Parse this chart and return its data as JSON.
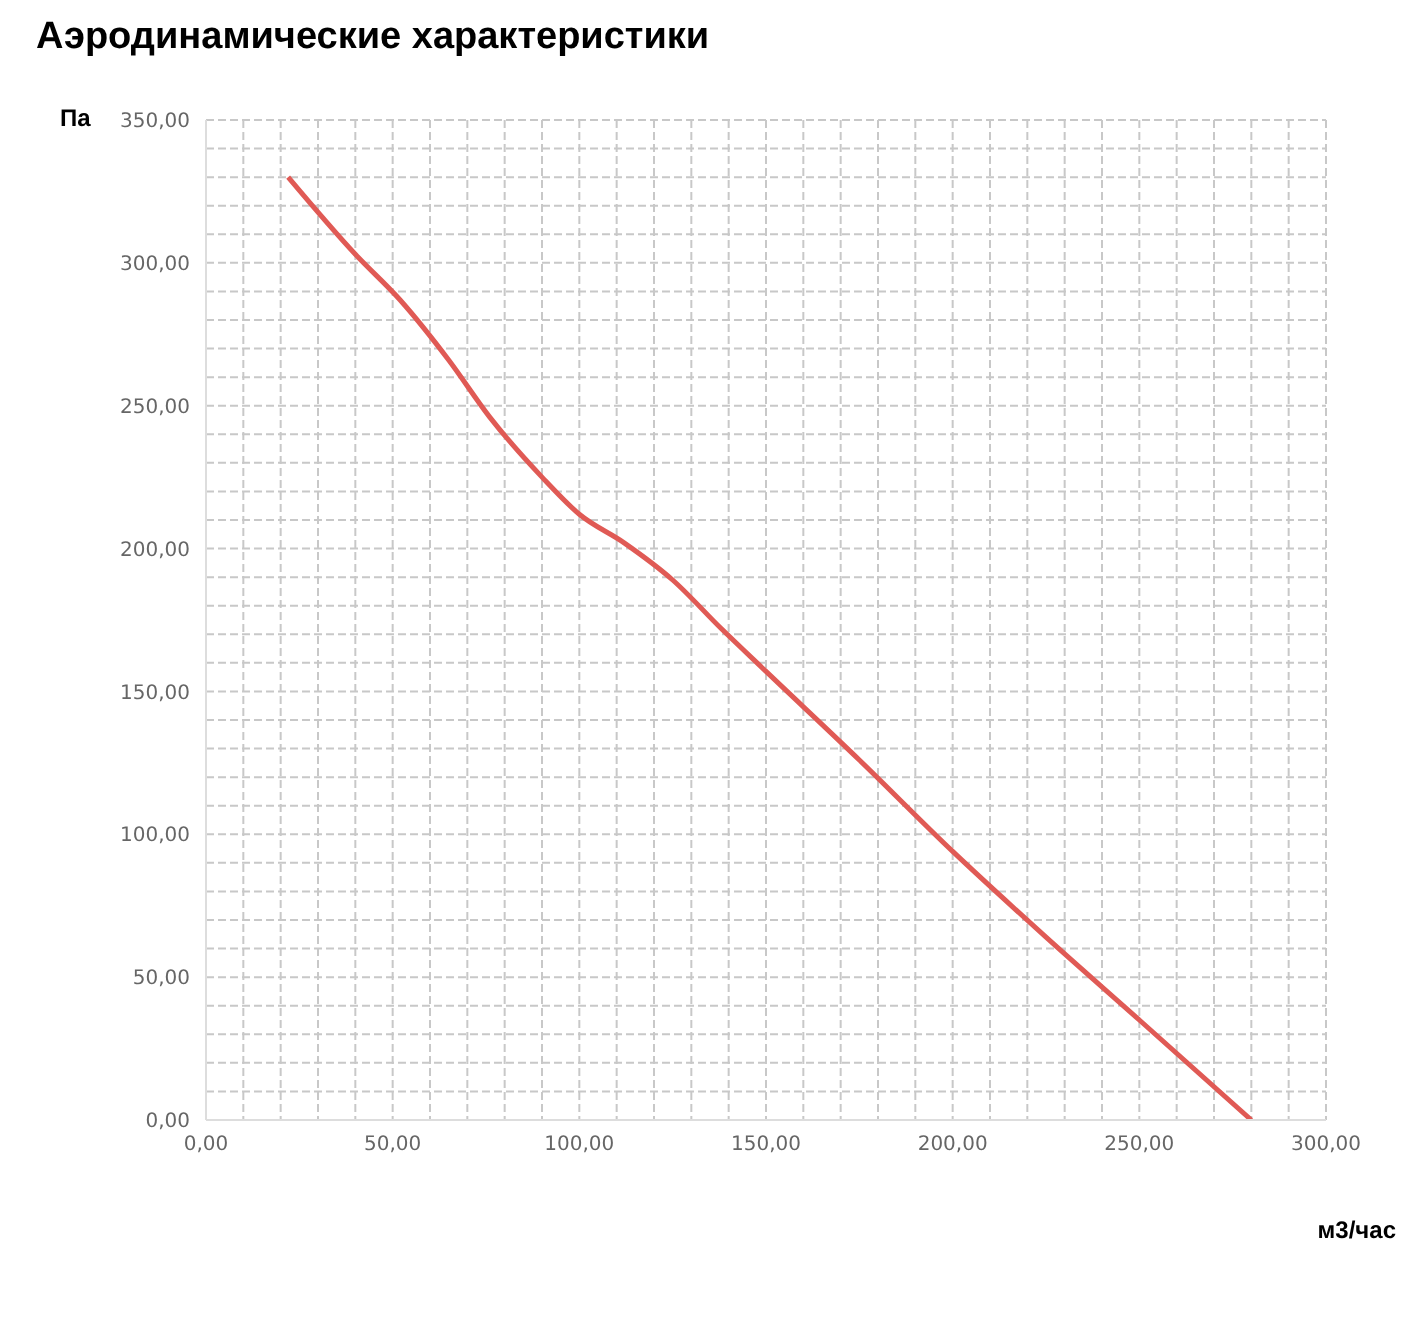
{
  "chart_data": {
    "type": "line",
    "title": "Аэродинамические характеристики",
    "xlabel": "м3/час",
    "ylabel": "Па",
    "x": [
      22,
      40,
      52,
      65,
      76,
      90,
      100,
      112,
      125,
      138,
      150,
      175,
      200,
      225,
      250,
      280
    ],
    "series": [
      {
        "color": "#e05a55",
        "values": [
          330,
          303,
          287,
          266,
          246,
          225,
          212,
          202,
          189,
          172,
          157,
          126,
          94,
          64,
          35,
          0
        ]
      }
    ],
    "xlim": [
      0,
      300
    ],
    "ylim": [
      0,
      350
    ],
    "xticks": [
      {
        "value": 0,
        "label": "0,00"
      },
      {
        "value": 10,
        "label": null
      },
      {
        "value": 20,
        "label": null
      },
      {
        "value": 30,
        "label": null
      },
      {
        "value": 40,
        "label": null
      },
      {
        "value": 50,
        "label": "50,00"
      },
      {
        "value": 60,
        "label": null
      },
      {
        "value": 70,
        "label": null
      },
      {
        "value": 80,
        "label": null
      },
      {
        "value": 90,
        "label": null
      },
      {
        "value": 100,
        "label": "100,00"
      },
      {
        "value": 110,
        "label": null
      },
      {
        "value": 120,
        "label": null
      },
      {
        "value": 130,
        "label": null
      },
      {
        "value": 140,
        "label": null
      },
      {
        "value": 150,
        "label": "150,00"
      },
      {
        "value": 160,
        "label": null
      },
      {
        "value": 170,
        "label": null
      },
      {
        "value": 180,
        "label": null
      },
      {
        "value": 190,
        "label": null
      },
      {
        "value": 200,
        "label": "200,00"
      },
      {
        "value": 210,
        "label": null
      },
      {
        "value": 220,
        "label": null
      },
      {
        "value": 230,
        "label": null
      },
      {
        "value": 240,
        "label": null
      },
      {
        "value": 250,
        "label": "250,00"
      },
      {
        "value": 260,
        "label": null
      },
      {
        "value": 270,
        "label": null
      },
      {
        "value": 280,
        "label": null
      },
      {
        "value": 290,
        "label": null
      },
      {
        "value": 300,
        "label": "300,00"
      }
    ],
    "yticks": [
      {
        "value": 0,
        "label": "0,00"
      },
      {
        "value": 10,
        "label": null
      },
      {
        "value": 20,
        "label": null
      },
      {
        "value": 30,
        "label": null
      },
      {
        "value": 40,
        "label": null
      },
      {
        "value": 50,
        "label": "50,00"
      },
      {
        "value": 60,
        "label": null
      },
      {
        "value": 70,
        "label": null
      },
      {
        "value": 80,
        "label": null
      },
      {
        "value": 90,
        "label": null
      },
      {
        "value": 100,
        "label": "100,00"
      },
      {
        "value": 110,
        "label": null
      },
      {
        "value": 120,
        "label": null
      },
      {
        "value": 130,
        "label": null
      },
      {
        "value": 140,
        "label": null
      },
      {
        "value": 150,
        "label": "150,00"
      },
      {
        "value": 160,
        "label": null
      },
      {
        "value": 170,
        "label": null
      },
      {
        "value": 180,
        "label": null
      },
      {
        "value": 190,
        "label": null
      },
      {
        "value": 200,
        "label": "200,00"
      },
      {
        "value": 210,
        "label": null
      },
      {
        "value": 220,
        "label": null
      },
      {
        "value": 230,
        "label": null
      },
      {
        "value": 240,
        "label": null
      },
      {
        "value": 250,
        "label": "250,00"
      },
      {
        "value": 260,
        "label": null
      },
      {
        "value": 270,
        "label": null
      },
      {
        "value": 280,
        "label": null
      },
      {
        "value": 290,
        "label": null
      },
      {
        "value": 300,
        "label": "300,00"
      },
      {
        "value": 310,
        "label": null
      },
      {
        "value": 320,
        "label": null
      },
      {
        "value": 330,
        "label": null
      },
      {
        "value": 340,
        "label": null
      },
      {
        "value": 350,
        "label": "350,00"
      }
    ],
    "grid": true,
    "marker": "none",
    "line_style": "solid",
    "legend": false
  }
}
